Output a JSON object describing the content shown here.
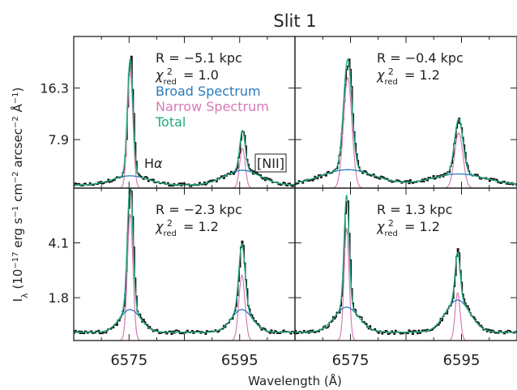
{
  "chart_data": {
    "type": "line",
    "title": "Slit 1",
    "xlabel": "Wavelength (Å)",
    "ylabel": "I_λ (10^-17 erg s^-1 cm^-2 arcsec^-2 Å^-1)",
    "xlim": [
      6565,
      6605
    ],
    "x_ticks": [
      6575,
      6595
    ],
    "x_tick_labels": [
      "6575",
      "6595"
    ],
    "legend": {
      "location": "top-left of first panel",
      "entries": [
        {
          "label": "Broad Spectrum",
          "color": "#2b7bbd"
        },
        {
          "label": "Narrow Spectrum",
          "color": "#d67bb8"
        },
        {
          "label": "Total",
          "color": "#1faa7a"
        }
      ]
    },
    "line_labels": [
      "Hα",
      "[NII]"
    ],
    "colors": {
      "data": "#111111",
      "broad": "#2b7bbd",
      "narrow": "#d67bb8",
      "total": "#1faa7a"
    },
    "panels": [
      {
        "id": "tl",
        "r_label": "R = −5.1 kpc",
        "chi_label": "χ_red² = 1.0",
        "ylim": [
          0,
          24.7
        ],
        "y_ticks": [
          7.9,
          16.3
        ],
        "y_tick_labels": [
          "7.9",
          "16.3"
        ],
        "continuum": 0.5,
        "halpha": {
          "center": 6575.2,
          "narrow_amp": 19.0,
          "narrow_width": 0.5,
          "broad_amp": 1.5,
          "broad_width": 3.2
        },
        "nii": {
          "center": 6595.5,
          "narrow_amp": 6.5,
          "narrow_width": 0.5,
          "broad_amp": 2.4,
          "broad_width": 3.2
        }
      },
      {
        "id": "tr",
        "r_label": "R = −0.4 kpc",
        "chi_label": "χ_red² = 1.2",
        "ylim": [
          0,
          24.7
        ],
        "y_ticks": [
          7.9,
          16.3
        ],
        "y_tick_labels": [
          "7.9",
          "16.3"
        ],
        "continuum": 0.5,
        "halpha": {
          "center": 6574.5,
          "narrow_amp": 18.0,
          "narrow_width": 0.75,
          "broad_amp": 2.5,
          "broad_width": 4.8
        },
        "nii": {
          "center": 6594.5,
          "narrow_amp": 9.0,
          "narrow_width": 0.75,
          "broad_amp": 1.8,
          "broad_width": 4.8
        }
      },
      {
        "id": "bl",
        "r_label": "R = −2.3 kpc",
        "chi_label": "χ_red² = 1.2",
        "ylim": [
          0,
          6.4
        ],
        "y_ticks": [
          1.8,
          4.1
        ],
        "y_tick_labels": [
          "1.8",
          "4.1"
        ],
        "continuum": 0.35,
        "halpha": {
          "center": 6575.2,
          "narrow_amp": 5.3,
          "narrow_width": 0.5,
          "broad_amp": 0.95,
          "broad_width": 1.9
        },
        "nii": {
          "center": 6595.4,
          "narrow_amp": 2.75,
          "narrow_width": 0.55,
          "broad_amp": 0.95,
          "broad_width": 1.9
        }
      },
      {
        "id": "br",
        "r_label": "R = 1.3 kpc",
        "chi_label": "χ_red² = 1.2",
        "ylim": [
          0,
          6.4
        ],
        "y_ticks": [
          1.8,
          4.1
        ],
        "y_tick_labels": [
          "1.8",
          "4.1"
        ],
        "continuum": 0.35,
        "halpha": {
          "center": 6574.3,
          "narrow_amp": 4.7,
          "narrow_width": 0.45,
          "broad_amp": 1.05,
          "broad_width": 2.2
        },
        "nii": {
          "center": 6594.3,
          "narrow_amp": 2.0,
          "narrow_width": 0.45,
          "broad_amp": 1.35,
          "broad_width": 2.2
        }
      }
    ]
  }
}
